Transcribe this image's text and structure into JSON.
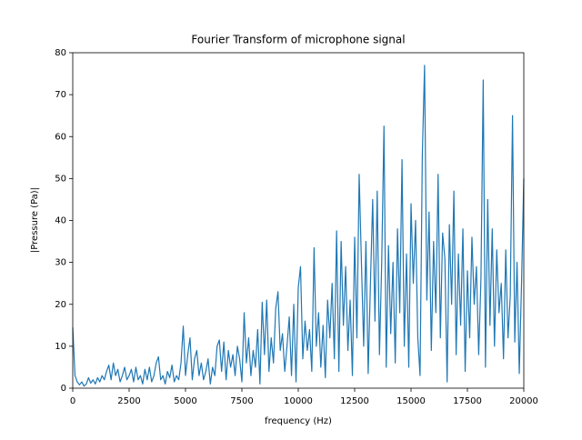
{
  "chart_data": {
    "type": "line",
    "title": "Fourier Transform of microphone signal",
    "x_label": "frequency (Hz)",
    "y_label": "|Pressure (Pa)|",
    "xlim": [
      0,
      20000
    ],
    "ylim": [
      0,
      80
    ],
    "xticks": [
      0,
      2500,
      5000,
      7500,
      10000,
      12500,
      15000,
      17500,
      20000
    ],
    "yticks": [
      0,
      10,
      20,
      30,
      40,
      50,
      60,
      70,
      80
    ],
    "grid": false,
    "series": [
      {
        "color": "#1f77b4",
        "x": [
          0,
          100,
          200,
          300,
          400,
          500,
          600,
          700,
          800,
          900,
          1000,
          1100,
          1200,
          1300,
          1400,
          1500,
          1600,
          1700,
          1800,
          1900,
          2000,
          2100,
          2200,
          2300,
          2400,
          2500,
          2600,
          2700,
          2800,
          2900,
          3000,
          3100,
          3200,
          3300,
          3400,
          3500,
          3600,
          3700,
          3800,
          3900,
          4000,
          4100,
          4200,
          4300,
          4400,
          4500,
          4600,
          4700,
          4800,
          4900,
          5000,
          5100,
          5200,
          5300,
          5400,
          5500,
          5600,
          5700,
          5800,
          5900,
          6000,
          6100,
          6200,
          6300,
          6400,
          6500,
          6600,
          6700,
          6800,
          6900,
          7000,
          7100,
          7200,
          7300,
          7400,
          7500,
          7600,
          7700,
          7800,
          7900,
          8000,
          8100,
          8200,
          8300,
          8400,
          8500,
          8600,
          8700,
          8800,
          8900,
          9000,
          9100,
          9200,
          9300,
          9400,
          9500,
          9600,
          9700,
          9800,
          9900,
          10000,
          10100,
          10200,
          10300,
          10400,
          10500,
          10600,
          10700,
          10800,
          10900,
          11000,
          11100,
          11200,
          11300,
          11400,
          11500,
          11600,
          11700,
          11800,
          11900,
          12000,
          12100,
          12200,
          12300,
          12400,
          12500,
          12600,
          12700,
          12800,
          12900,
          13000,
          13100,
          13200,
          13300,
          13400,
          13500,
          13600,
          13700,
          13800,
          13900,
          14000,
          14100,
          14200,
          14300,
          14400,
          14500,
          14600,
          14700,
          14800,
          14900,
          15000,
          15100,
          15200,
          15300,
          15400,
          15500,
          15600,
          15700,
          15800,
          15900,
          16000,
          16100,
          16200,
          16300,
          16400,
          16500,
          16600,
          16700,
          16800,
          16900,
          17000,
          17100,
          17200,
          17300,
          17400,
          17500,
          17600,
          17700,
          17800,
          17900,
          18000,
          18100,
          18200,
          18300,
          18400,
          18500,
          18600,
          18700,
          18800,
          18900,
          19000,
          19100,
          19200,
          19300,
          19400,
          19500,
          19600,
          19700,
          19800,
          19900,
          20000
        ],
        "values": [
          14.5,
          3,
          1.5,
          0.8,
          1.5,
          0.5,
          1,
          2.5,
          1.2,
          2,
          1,
          2.5,
          1.5,
          3,
          2,
          4,
          5.5,
          2,
          6,
          3,
          4.5,
          1.5,
          3,
          5,
          2,
          3,
          4.5,
          1.5,
          5,
          2,
          3,
          1,
          4.5,
          2,
          5,
          1.5,
          3,
          6,
          7.5,
          2,
          3,
          1,
          4,
          2.5,
          5.5,
          1.5,
          3,
          2,
          6,
          14.8,
          3,
          8,
          12,
          2,
          7,
          9,
          3,
          6,
          2,
          4,
          7,
          1,
          5,
          3,
          10,
          11.5,
          4,
          11,
          2,
          9,
          5,
          8,
          3,
          10,
          7,
          1.5,
          18,
          6,
          12,
          3,
          9,
          5,
          14,
          1,
          20.5,
          8,
          21,
          4,
          12,
          6,
          19,
          23,
          9,
          13,
          4,
          10,
          17,
          3,
          20,
          1.5,
          24,
          29,
          7,
          16,
          9,
          14,
          4,
          33.5,
          10,
          18,
          5,
          15,
          2.5,
          21,
          12,
          25,
          7,
          37.5,
          4,
          35,
          15,
          29,
          9,
          21,
          3,
          36,
          12,
          51,
          30,
          10,
          35,
          3.5,
          25,
          45,
          16,
          47,
          8,
          30,
          62.5,
          5,
          34,
          13,
          30,
          6,
          38,
          18,
          54.5,
          10,
          32,
          5,
          44,
          25,
          40,
          12,
          3,
          55.5,
          77,
          21,
          42,
          9,
          35,
          18,
          51,
          12,
          37,
          31,
          1.5,
          39,
          20,
          47,
          8,
          32,
          15,
          38,
          4,
          28,
          12,
          36,
          20,
          29,
          8,
          26,
          73.5,
          5,
          45,
          15,
          38,
          10,
          33,
          18,
          25,
          7,
          33,
          12,
          22,
          65,
          11,
          30,
          3.5,
          25,
          50
        ]
      }
    ]
  }
}
